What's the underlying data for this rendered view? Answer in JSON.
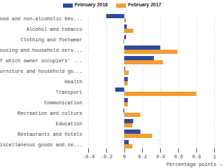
{
  "chart_data": {
    "type": "bar",
    "orientation": "horizontal",
    "categories": [
      "Food and non-alcoholic bev...",
      "Alcohol and tobacco",
      "Clothing and footwear",
      "Housing and household serv...",
      "of which owner occupiers' ...",
      "Furniture and household go...",
      "Health",
      "Transport",
      "Communication",
      "Recreation and culture",
      "Education",
      "Restaurants and hotels",
      "Miscellaneous goods and se..."
    ],
    "series": [
      {
        "name": "February 2016",
        "color": "#2e4b9b",
        "values": [
          -0.2,
          0.03,
          0.02,
          0.4,
          0.33,
          0.01,
          0.04,
          -0.1,
          0.04,
          -0.01,
          0.1,
          0.18,
          0.05
        ]
      },
      {
        "name": "February 2017",
        "color": "#f39c32",
        "values": [
          0.02,
          0.1,
          -0.01,
          0.59,
          0.43,
          0.05,
          0.04,
          0.8,
          0.04,
          0.18,
          0.09,
          0.31,
          0.09
        ]
      }
    ],
    "xlabel": "Percentage points",
    "xlim": [
      -0.4,
      1
    ],
    "xticks": [
      -0.4,
      -0.2,
      0,
      0.2,
      0.4,
      0.6,
      0.8,
      1
    ],
    "grid": true,
    "legend": "top"
  }
}
